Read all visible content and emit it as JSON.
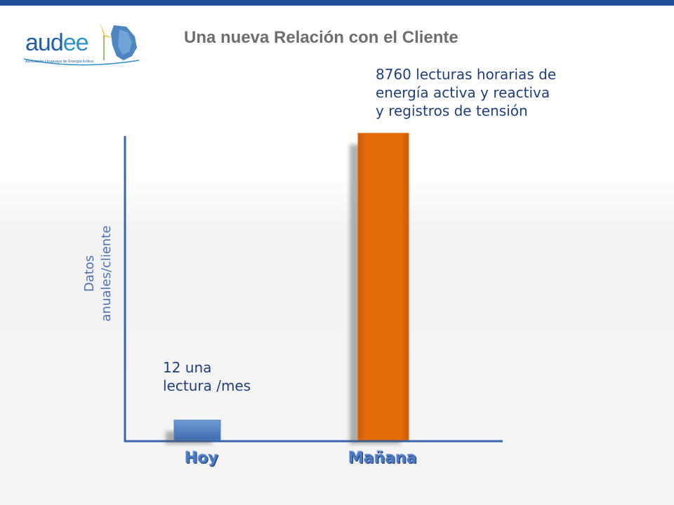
{
  "header": {
    "title": "Una nueva Relación con el Cliente",
    "logo_text_a": "aud",
    "logo_text_b": "ee",
    "logo_subtitle": "Asociación Uruguaya de Energía Eólica",
    "accent_color": "#1f4f9a"
  },
  "chart_data": {
    "type": "bar",
    "title": "",
    "xlabel": "",
    "ylabel": "Datos anuales/cliente",
    "ylabel_lines": [
      "Datos",
      "anuales/cliente"
    ],
    "categories": [
      "Hoy",
      "Mañana"
    ],
    "values": [
      12,
      8760
    ],
    "colors": [
      "#4f81bd",
      "#e46c0a"
    ],
    "ylim": [
      0,
      8760
    ],
    "grid": false,
    "legend": "none",
    "annotations": [
      {
        "target": "Hoy",
        "lines": [
          "12 una",
          "lectura /mes"
        ]
      },
      {
        "target": "Mañana",
        "lines": [
          "8760 lecturas horarias de",
          "energía activa y reactiva",
          "y registros de tensión"
        ]
      }
    ]
  }
}
